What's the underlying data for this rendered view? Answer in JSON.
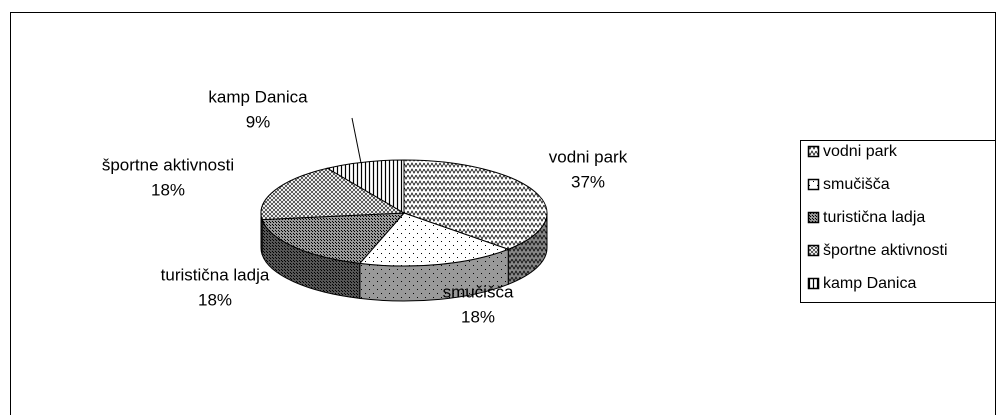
{
  "chart_data": {
    "type": "pie",
    "categories": [
      "vodni park",
      "smučišča",
      "turistična ladja",
      "športne aktivnosti",
      "kamp Danica"
    ],
    "values": [
      37,
      18,
      18,
      18,
      9
    ],
    "value_labels": [
      "37%",
      "18%",
      "18%",
      "18%",
      "9%"
    ],
    "legend": "right"
  }
}
